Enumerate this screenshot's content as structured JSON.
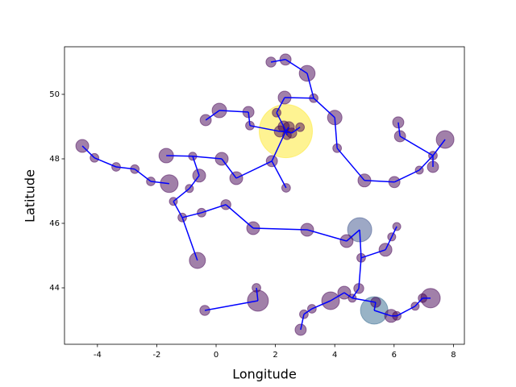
{
  "chart_data": {
    "type": "scatter",
    "x_label": "Longitude",
    "y_label": "Latitude",
    "xlim": [
      -5.11,
      8.37
    ],
    "ylim": [
      42.25,
      51.475
    ],
    "xticks": [
      -4,
      -2,
      0,
      2,
      4,
      6,
      8
    ],
    "yticks": [
      44,
      46,
      48,
      50
    ],
    "alpha": 0.5,
    "edge_color": "#0000ff",
    "x": [
      2.35,
      2.15,
      2.28,
      2.45,
      2.55,
      2.83,
      2.39,
      1.85,
      2.34,
      3.07,
      3.29,
      2.31,
      2.04,
      0.11,
      1.09,
      1.14,
      -0.35,
      4.0,
      4.08,
      5.0,
      6.01,
      6.85,
      7.31,
      7.72,
      7.31,
      6.14,
      6.2,
      -4.51,
      -4.1,
      -3.37,
      -2.74,
      -2.2,
      -1.68,
      -1.58,
      -0.79,
      -0.57,
      -0.9,
      -1.44,
      -1.14,
      -0.49,
      -0.63,
      0.33,
      1.25,
      3.07,
      0.19,
      0.68,
      1.88,
      2.36,
      4.84,
      4.4,
      4.89,
      5.71,
      5.92,
      6.09,
      -0.38,
      1.36,
      1.41,
      2.85,
      2.96,
      3.23,
      3.86,
      4.32,
      4.59,
      4.81,
      5.33,
      5.38,
      5.9,
      6.09,
      6.71,
      6.96,
      7.23
    ],
    "y": [
      48.86,
      48.85,
      49.0,
      48.98,
      48.8,
      48.98,
      48.73,
      51.0,
      51.08,
      50.65,
      49.88,
      49.9,
      49.43,
      49.5,
      49.45,
      49.03,
      49.2,
      49.28,
      48.33,
      47.33,
      47.28,
      47.65,
      48.1,
      48.6,
      47.75,
      49.13,
      48.7,
      48.4,
      48.03,
      47.75,
      47.68,
      47.3,
      48.1,
      47.23,
      48.08,
      47.48,
      47.08,
      46.68,
      46.18,
      46.33,
      44.85,
      46.58,
      45.85,
      45.8,
      48.0,
      47.4,
      47.93,
      47.1,
      45.8,
      45.45,
      44.93,
      45.18,
      45.58,
      45.9,
      43.3,
      44.0,
      43.6,
      42.7,
      43.18,
      43.35,
      43.6,
      43.85,
      43.68,
      43.98,
      43.3,
      43.55,
      43.13,
      43.13,
      43.43,
      43.68,
      43.68
    ],
    "sizes": [
      2260,
      100,
      100,
      100,
      80,
      60,
      60,
      80,
      100,
      200,
      60,
      133,
      60,
      168,
      100,
      60,
      100,
      168,
      60,
      133,
      100,
      52,
      60,
      251,
      100,
      100,
      100,
      133,
      60,
      60,
      60,
      60,
      168,
      251,
      52,
      133,
      52,
      52,
      60,
      60,
      207,
      80,
      133,
      133,
      133,
      133,
      100,
      60,
      467,
      133,
      60,
      133,
      52,
      52,
      80,
      60,
      350,
      100,
      60,
      60,
      251,
      133,
      52,
      80,
      600,
      80,
      133,
      60,
      52,
      60,
      300
    ],
    "colors": [
      "#fde725",
      "#440154",
      "#440154",
      "#440154",
      "#440154",
      "#440154",
      "#440154",
      "#440154",
      "#440154",
      "#440154",
      "#440154",
      "#440154",
      "#440154",
      "#440154",
      "#440154",
      "#440154",
      "#440154",
      "#440154",
      "#440154",
      "#440154",
      "#440154",
      "#440154",
      "#440154",
      "#440154",
      "#440154",
      "#440154",
      "#440154",
      "#440154",
      "#440154",
      "#440154",
      "#440154",
      "#440154",
      "#440154",
      "#440154",
      "#440154",
      "#440154",
      "#440154",
      "#440154",
      "#440154",
      "#440154",
      "#440154",
      "#440154",
      "#440154",
      "#440154",
      "#440154",
      "#440154",
      "#440154",
      "#440154",
      "#3b528b",
      "#440154",
      "#440154",
      "#440154",
      "#440154",
      "#440154",
      "#440154",
      "#440154",
      "#440154",
      "#440154",
      "#440154",
      "#440154",
      "#440154",
      "#440154",
      "#440154",
      "#440154",
      "#31688e",
      "#440154",
      "#440154",
      "#440154",
      "#440154",
      "#440154",
      "#440154"
    ],
    "edges": [
      [
        0,
        1
      ],
      [
        0,
        2
      ],
      [
        0,
        3
      ],
      [
        0,
        4
      ],
      [
        4,
        5
      ],
      [
        0,
        6
      ],
      [
        1,
        15
      ],
      [
        15,
        14
      ],
      [
        14,
        13
      ],
      [
        13,
        16
      ],
      [
        2,
        12
      ],
      [
        12,
        11
      ],
      [
        11,
        10
      ],
      [
        10,
        9
      ],
      [
        9,
        8
      ],
      [
        8,
        7
      ],
      [
        10,
        17
      ],
      [
        17,
        18
      ],
      [
        18,
        19
      ],
      [
        19,
        20
      ],
      [
        20,
        21
      ],
      [
        21,
        22
      ],
      [
        22,
        23
      ],
      [
        22,
        24
      ],
      [
        25,
        26
      ],
      [
        26,
        22
      ],
      [
        0,
        46
      ],
      [
        46,
        47
      ],
      [
        46,
        45
      ],
      [
        45,
        44
      ],
      [
        44,
        34
      ],
      [
        34,
        32
      ],
      [
        34,
        35
      ],
      [
        35,
        36
      ],
      [
        36,
        37
      ],
      [
        37,
        38
      ],
      [
        38,
        40
      ],
      [
        38,
        39
      ],
      [
        39,
        41
      ],
      [
        41,
        42
      ],
      [
        42,
        43
      ],
      [
        43,
        49
      ],
      [
        49,
        48
      ],
      [
        48,
        50
      ],
      [
        50,
        51
      ],
      [
        51,
        52
      ],
      [
        52,
        53
      ],
      [
        50,
        63
      ],
      [
        27,
        28
      ],
      [
        28,
        29
      ],
      [
        29,
        30
      ],
      [
        30,
        31
      ],
      [
        31,
        33
      ],
      [
        54,
        56
      ],
      [
        55,
        56
      ],
      [
        57,
        58
      ],
      [
        58,
        59
      ],
      [
        59,
        60
      ],
      [
        60,
        61
      ],
      [
        61,
        62
      ],
      [
        62,
        63
      ],
      [
        62,
        65
      ],
      [
        65,
        64
      ],
      [
        64,
        66
      ],
      [
        66,
        67
      ],
      [
        67,
        68
      ],
      [
        68,
        69
      ],
      [
        69,
        70
      ]
    ]
  }
}
